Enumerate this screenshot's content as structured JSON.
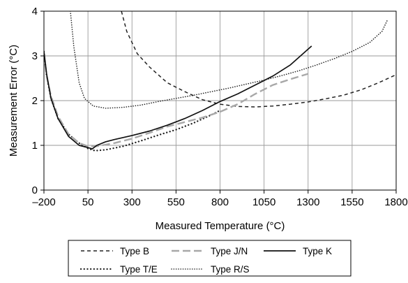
{
  "chart_data": {
    "type": "line",
    "title": "",
    "xlabel": "Measured Temperature (°C)",
    "ylabel": "Measurement Error (°C)",
    "xlim": [
      -200,
      1800
    ],
    "ylim": [
      0,
      4
    ],
    "x_ticks": [
      -200,
      50,
      300,
      550,
      800,
      1050,
      1300,
      1550,
      1800
    ],
    "x_tick_labels": [
      "–200",
      "50",
      "300",
      "550",
      "800",
      "1050",
      "1300",
      "1550",
      "1800"
    ],
    "y_ticks": [
      0,
      1,
      2,
      3,
      4
    ],
    "y_tick_labels": [
      "0",
      "1",
      "2",
      "3",
      "4"
    ],
    "grid": true,
    "legend_position": "bottom",
    "series": [
      {
        "name": "Type B",
        "style": "dashed",
        "color": "#222222",
        "points": [
          [
            240,
            4.0
          ],
          [
            270,
            3.55
          ],
          [
            330,
            3.05
          ],
          [
            400,
            2.75
          ],
          [
            500,
            2.4
          ],
          [
            600,
            2.2
          ],
          [
            700,
            2.02
          ],
          [
            800,
            1.92
          ],
          [
            900,
            1.87
          ],
          [
            1000,
            1.86
          ],
          [
            1100,
            1.88
          ],
          [
            1200,
            1.92
          ],
          [
            1300,
            1.97
          ],
          [
            1400,
            2.04
          ],
          [
            1500,
            2.12
          ],
          [
            1600,
            2.24
          ],
          [
            1700,
            2.4
          ],
          [
            1800,
            2.58
          ]
        ]
      },
      {
        "name": "Type T/E",
        "style": "dotted",
        "color": "#222222",
        "points": [
          [
            -200,
            3.1
          ],
          [
            -185,
            2.55
          ],
          [
            -160,
            2.05
          ],
          [
            -120,
            1.6
          ],
          [
            -60,
            1.25
          ],
          [
            0,
            1.05
          ],
          [
            50,
            0.93
          ],
          [
            90,
            0.88
          ],
          [
            150,
            0.9
          ],
          [
            250,
            0.98
          ],
          [
            350,
            1.1
          ],
          [
            450,
            1.23
          ],
          [
            550,
            1.35
          ],
          [
            650,
            1.5
          ],
          [
            750,
            1.68
          ],
          [
            800,
            1.78
          ]
        ]
      },
      {
        "name": "Type J/N",
        "style": "long-dash",
        "color": "#a8a8a8",
        "points": [
          [
            -200,
            3.05
          ],
          [
            -185,
            2.55
          ],
          [
            -160,
            2.1
          ],
          [
            -120,
            1.65
          ],
          [
            -60,
            1.25
          ],
          [
            0,
            1.05
          ],
          [
            50,
            0.98
          ],
          [
            100,
            0.98
          ],
          [
            200,
            1.05
          ],
          [
            300,
            1.15
          ],
          [
            400,
            1.28
          ],
          [
            500,
            1.42
          ],
          [
            600,
            1.52
          ],
          [
            700,
            1.62
          ],
          [
            800,
            1.75
          ],
          [
            900,
            1.92
          ],
          [
            1000,
            2.15
          ],
          [
            1100,
            2.35
          ],
          [
            1200,
            2.48
          ],
          [
            1300,
            2.6
          ]
        ]
      },
      {
        "name": "Type K",
        "style": "solid",
        "color": "#111111",
        "points": [
          [
            -200,
            3.1
          ],
          [
            -185,
            2.6
          ],
          [
            -160,
            2.05
          ],
          [
            -120,
            1.6
          ],
          [
            -60,
            1.2
          ],
          [
            0,
            1.0
          ],
          [
            50,
            0.95
          ],
          [
            75,
            0.92
          ],
          [
            100,
            1.0
          ],
          [
            150,
            1.08
          ],
          [
            200,
            1.13
          ],
          [
            300,
            1.22
          ],
          [
            400,
            1.32
          ],
          [
            500,
            1.45
          ],
          [
            600,
            1.6
          ],
          [
            700,
            1.78
          ],
          [
            800,
            1.98
          ],
          [
            900,
            2.15
          ],
          [
            1000,
            2.35
          ],
          [
            1100,
            2.55
          ],
          [
            1200,
            2.8
          ],
          [
            1320,
            3.22
          ]
        ]
      },
      {
        "name": "Type R/S",
        "style": "fine-dotted",
        "color": "#222222",
        "points": [
          [
            -50,
            4.0
          ],
          [
            -30,
            3.2
          ],
          [
            0,
            2.4
          ],
          [
            30,
            2.05
          ],
          [
            80,
            1.88
          ],
          [
            150,
            1.83
          ],
          [
            250,
            1.85
          ],
          [
            350,
            1.9
          ],
          [
            450,
            1.98
          ],
          [
            550,
            2.05
          ],
          [
            650,
            2.12
          ],
          [
            750,
            2.2
          ],
          [
            850,
            2.28
          ],
          [
            950,
            2.37
          ],
          [
            1050,
            2.46
          ],
          [
            1150,
            2.56
          ],
          [
            1250,
            2.67
          ],
          [
            1350,
            2.8
          ],
          [
            1450,
            2.94
          ],
          [
            1550,
            3.1
          ],
          [
            1650,
            3.3
          ],
          [
            1720,
            3.55
          ],
          [
            1750,
            3.8
          ]
        ]
      }
    ]
  }
}
